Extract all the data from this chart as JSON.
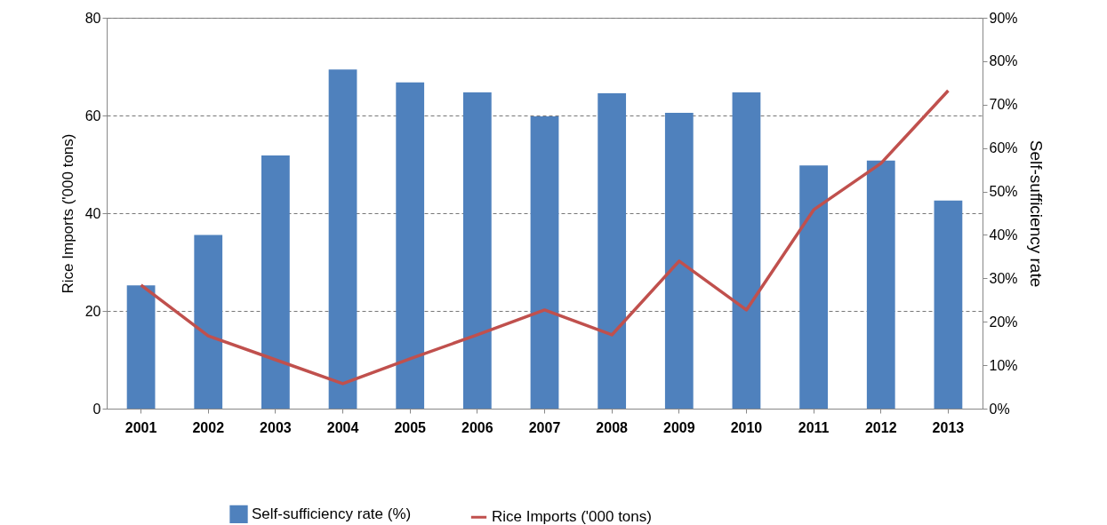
{
  "chart_data": {
    "type": "bar",
    "categories": [
      "2001",
      "2002",
      "2003",
      "2004",
      "2005",
      "2006",
      "2007",
      "2008",
      "2009",
      "2010",
      "2011",
      "2012",
      "2013"
    ],
    "ylabel": "Rice Imports ('000 tons)",
    "y2label": "Self-sufficiency rate",
    "series": [
      {
        "name": "Self-sufficiency rate (%)",
        "axis": "y2",
        "color": "#4f81bd",
        "values": [
          28.4,
          40.0,
          58.3,
          78.1,
          75.1,
          72.8,
          67.3,
          72.6,
          68.1,
          72.8,
          56.0,
          57.1,
          47.9
        ]
      },
      {
        "name": "Rice Imports ('000 tons)",
        "type": "line",
        "axis": "y",
        "color": "#c0504d",
        "values": [
          25.3,
          14.9,
          10,
          5.1,
          10.2,
          15.1,
          20.2,
          15.1,
          30.2,
          20.2,
          40.7,
          50.2,
          65.1
        ]
      }
    ],
    "ylim": [
      0,
      80
    ],
    "yticks": [
      0,
      20,
      40,
      60,
      80
    ],
    "y2lim": [
      0,
      90
    ],
    "y2ticks": [
      {
        "value": 0,
        "label": "0%"
      },
      {
        "value": 10,
        "label": "10%"
      },
      {
        "value": 20,
        "label": "20%"
      },
      {
        "value": 30,
        "label": "30%"
      },
      {
        "value": 40,
        "label": "40%"
      },
      {
        "value": 50,
        "label": "50%"
      },
      {
        "value": 60,
        "label": "60%"
      },
      {
        "value": 70,
        "label": "70%"
      },
      {
        "value": 80,
        "label": "80%"
      },
      {
        "value": 90,
        "label": "90%"
      }
    ],
    "grid": "y",
    "legend": "bottom",
    "line_style": "solid",
    "marker": "none"
  }
}
